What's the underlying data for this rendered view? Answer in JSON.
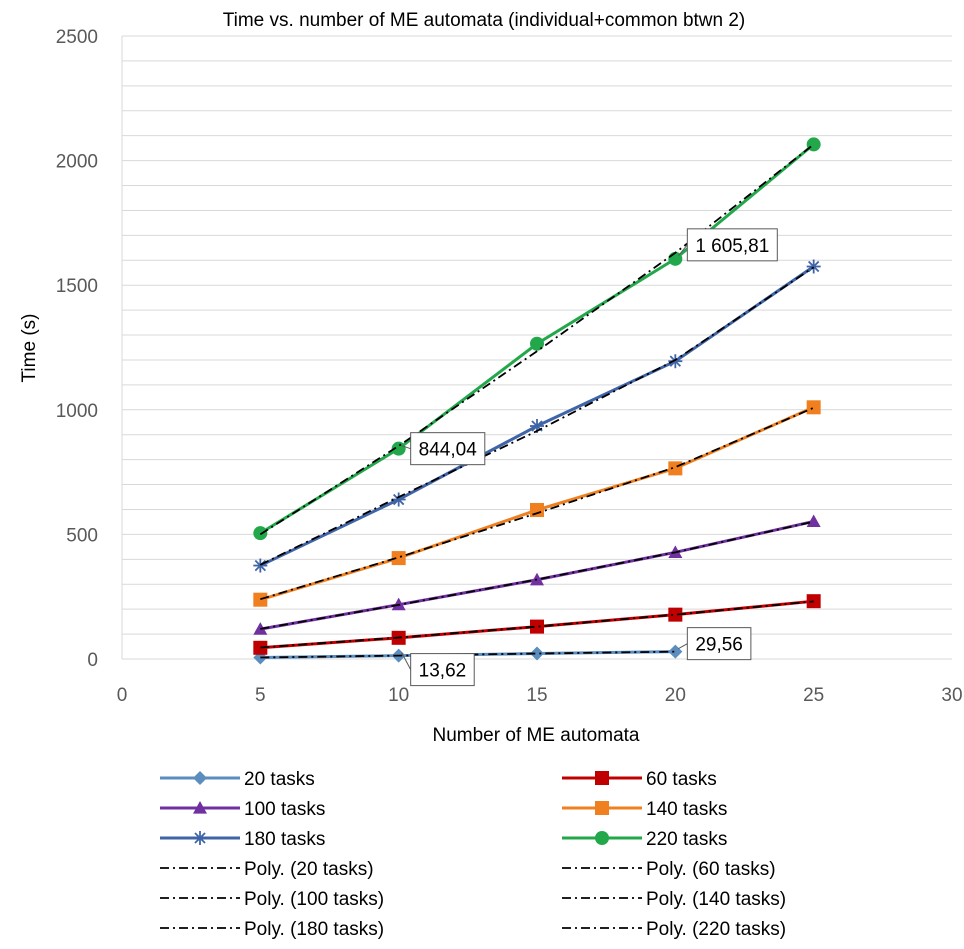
{
  "chart_data": {
    "type": "line",
    "title": "Time vs. number of ME automata (individual+common btwn 2)",
    "xlabel": "Number of ME automata",
    "ylabel": "Time (s)",
    "xlim": [
      0,
      30
    ],
    "ylim": [
      0,
      2500
    ],
    "x_ticks": [
      "0",
      "5",
      "10",
      "15",
      "20",
      "25",
      "30"
    ],
    "y_ticks": [
      "0",
      "500",
      "1000",
      "1500",
      "2000",
      "2500"
    ],
    "x_tick_values": [
      0,
      5,
      10,
      15,
      20,
      25,
      30
    ],
    "y_tick_values": [
      0,
      500,
      1000,
      1500,
      2000,
      2500
    ],
    "y_minor_step": 100,
    "grid": "horizontal major and minor",
    "legend_position": "bottom",
    "series": [
      {
        "name": "20 tasks",
        "color": "#5B8DBF",
        "marker": "diamond",
        "x": [
          5,
          10,
          15,
          20
        ],
        "values": [
          6,
          13.62,
          22,
          29.56
        ]
      },
      {
        "name": "60 tasks",
        "color": "#C00000",
        "marker": "square",
        "x": [
          5,
          10,
          15,
          20,
          25
        ],
        "values": [
          45,
          85,
          130,
          178,
          232
        ]
      },
      {
        "name": "100 tasks",
        "color": "#7030A0",
        "marker": "triangle",
        "x": [
          5,
          10,
          15,
          20,
          25
        ],
        "values": [
          120,
          218,
          318,
          428,
          552
        ]
      },
      {
        "name": "140 tasks",
        "color": "#F07F1F",
        "marker": "square",
        "x": [
          5,
          10,
          15,
          20,
          25
        ],
        "values": [
          238,
          405,
          598,
          765,
          1010
        ]
      },
      {
        "name": "180 tasks",
        "color": "#3F64A8",
        "marker": "star",
        "x": [
          5,
          10,
          15,
          20,
          25
        ],
        "values": [
          375,
          640,
          935,
          1195,
          1575
        ]
      },
      {
        "name": "220 tasks",
        "color": "#22A84A",
        "marker": "circle",
        "x": [
          5,
          10,
          15,
          20,
          25
        ],
        "values": [
          505,
          844.04,
          1265,
          1605.81,
          2065
        ]
      }
    ],
    "trendlines": [
      {
        "name": "Poly. (20 tasks)",
        "x": [
          5,
          10,
          15,
          20
        ],
        "values": [
          6,
          13.6,
          21.9,
          29.6
        ]
      },
      {
        "name": "Poly. (60 tasks)",
        "x": [
          5,
          10,
          15,
          20,
          25
        ],
        "values": [
          46,
          86,
          130,
          178,
          231
        ]
      },
      {
        "name": "Poly. (100 tasks)",
        "x": [
          5,
          10,
          15,
          20,
          25
        ],
        "values": [
          121,
          217,
          319,
          428,
          551
        ]
      },
      {
        "name": "Poly. (140 tasks)",
        "x": [
          5,
          10,
          15,
          20,
          25
        ],
        "values": [
          240,
          408,
          585,
          770,
          1008
        ]
      },
      {
        "name": "Poly. (180 tasks)",
        "x": [
          5,
          10,
          15,
          20,
          25
        ],
        "values": [
          378,
          650,
          915,
          1200,
          1572
        ]
      },
      {
        "name": "Poly. (220 tasks)",
        "x": [
          5,
          10,
          15,
          20,
          25
        ],
        "values": [
          500,
          855,
          1235,
          1630,
          2065
        ]
      }
    ],
    "annotations": [
      {
        "text": "13,62",
        "series": "20 tasks",
        "x": 10,
        "value": 13.62
      },
      {
        "text": "29,56",
        "series": "20 tasks",
        "x": 20,
        "value": 29.56
      },
      {
        "text": "844,04",
        "series": "220 tasks",
        "x": 10,
        "value": 844.04
      },
      {
        "text": "1 605,81",
        "series": "220 tasks",
        "x": 20,
        "value": 1605.81
      }
    ]
  }
}
